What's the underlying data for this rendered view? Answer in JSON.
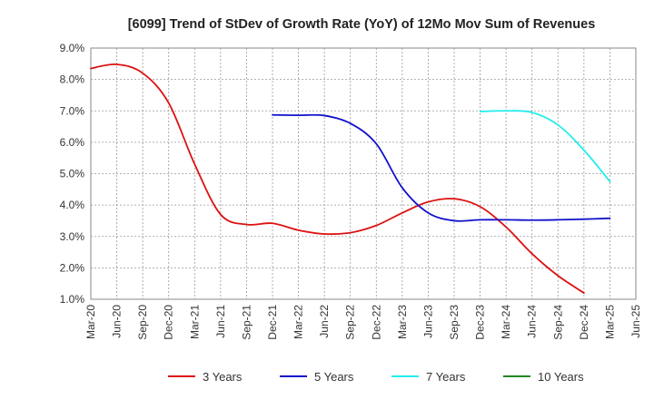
{
  "chart_data": {
    "type": "line",
    "title": "[6099]  Trend of StDev of Growth Rate (YoY) of 12Mo Mov Sum of Revenues",
    "xlabel": "",
    "ylabel": "",
    "x_ticks": [
      "Mar-20",
      "Jun-20",
      "Sep-20",
      "Dec-20",
      "Mar-21",
      "Jun-21",
      "Sep-21",
      "Dec-21",
      "Mar-22",
      "Jun-22",
      "Sep-22",
      "Dec-22",
      "Mar-23",
      "Jun-23",
      "Sep-23",
      "Dec-23",
      "Mar-24",
      "Jun-24",
      "Sep-24",
      "Dec-24",
      "Mar-25",
      "Jun-25"
    ],
    "y_ticks": [
      "1.0%",
      "2.0%",
      "3.0%",
      "4.0%",
      "5.0%",
      "6.0%",
      "7.0%",
      "8.0%",
      "9.0%"
    ],
    "ylim": [
      1.0,
      9.0
    ],
    "grid": true,
    "legend_position": "bottom",
    "series": [
      {
        "name": "3 Years",
        "color": "#dd1111",
        "values": [
          8.35,
          8.48,
          8.2,
          7.25,
          5.3,
          3.7,
          3.38,
          3.42,
          3.2,
          3.08,
          3.12,
          3.35,
          3.75,
          4.1,
          4.2,
          3.95,
          3.3,
          2.45,
          1.75,
          1.2
        ]
      },
      {
        "name": "5 Years",
        "color": "#1111cc",
        "start_index": 7,
        "values": [
          6.87,
          6.86,
          6.85,
          6.6,
          5.95,
          4.55,
          3.75,
          3.5,
          3.53,
          3.53,
          3.52,
          3.53,
          3.55,
          3.58
        ]
      },
      {
        "name": "7 Years",
        "color": "#22eeee",
        "start_index": 15,
        "values": [
          6.98,
          7.0,
          6.95,
          6.55,
          5.75,
          4.75
        ]
      },
      {
        "name": "10 Years",
        "color": "#228822",
        "start_index": 0,
        "values": []
      }
    ]
  }
}
